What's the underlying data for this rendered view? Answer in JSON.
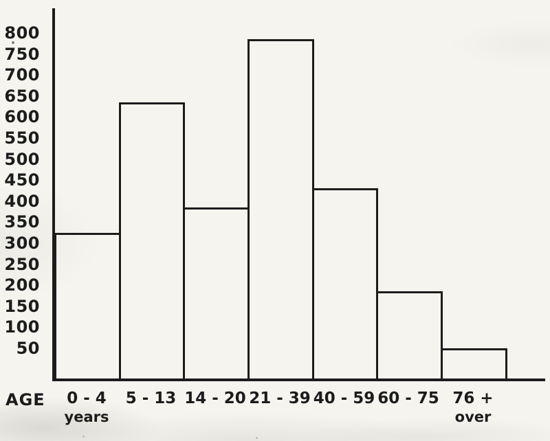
{
  "scan": {
    "background": "#f5f4ef",
    "ink": "#1c1c1c"
  },
  "chart_data": {
    "type": "bar",
    "title": "",
    "xlabel": "AGE",
    "ylabel": "",
    "categories": [
      "0 - 4",
      "5 - 13",
      "14 - 20",
      "21 - 39",
      "40 - 59",
      "60 - 75",
      "76 +"
    ],
    "category_sublabels": [
      "years",
      "",
      "",
      "",
      "",
      "",
      "over"
    ],
    "values": [
      325,
      635,
      385,
      785,
      430,
      185,
      50
    ],
    "y_ticks": [
      800,
      750,
      700,
      650,
      600,
      550,
      500,
      450,
      400,
      350,
      300,
      250,
      200,
      150,
      100,
      50
    ],
    "ylim": [
      0,
      830
    ],
    "grid": false,
    "legend_position": "none",
    "bar_fill": "transparent",
    "bar_outline": "#1c1c1c"
  }
}
